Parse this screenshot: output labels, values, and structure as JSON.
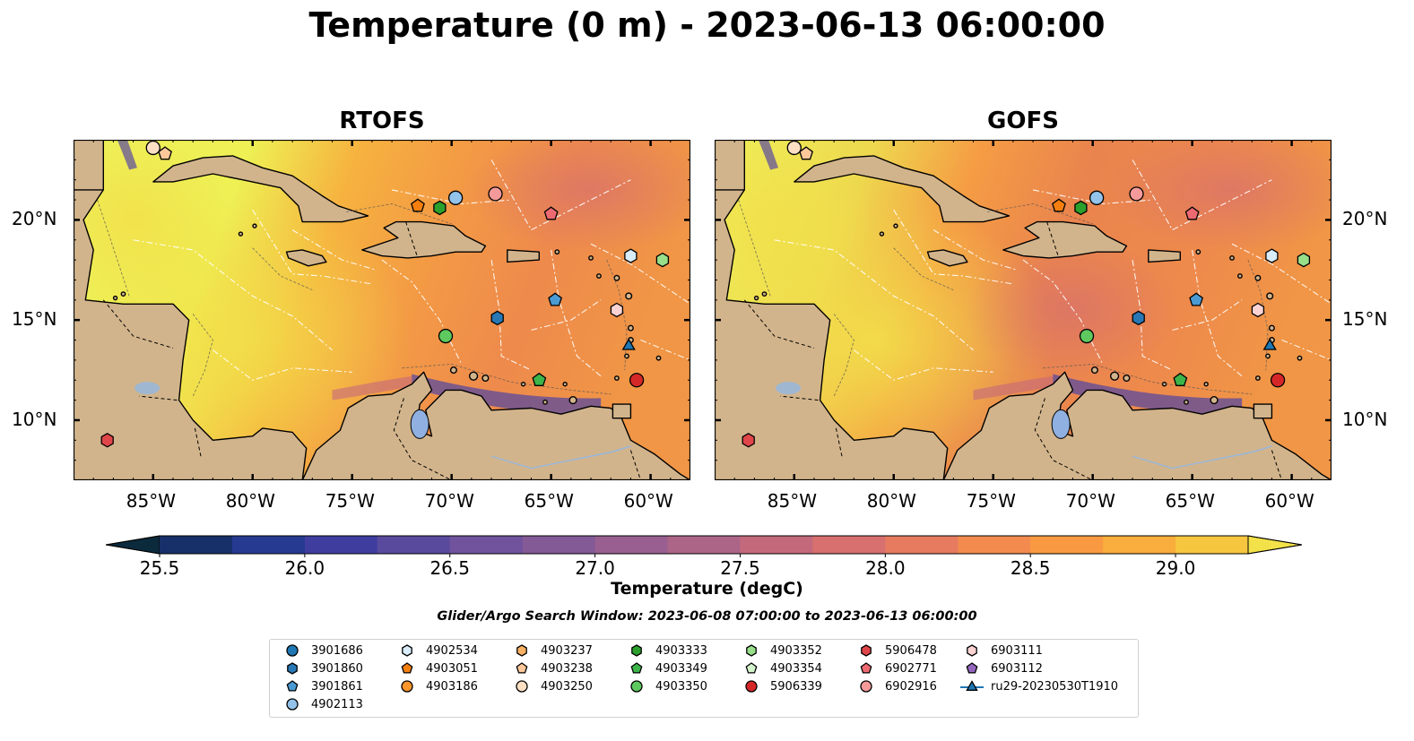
{
  "title": "Temperature (0 m) - 2023-06-13 06:00:00",
  "panels": [
    {
      "title": "RTOFS"
    },
    {
      "title": "GOFS"
    }
  ],
  "axes": {
    "lon_ticks": [
      "85°W",
      "80°W",
      "75°W",
      "70°W",
      "65°W",
      "60°W"
    ],
    "lat_ticks": [
      "20°N",
      "15°N",
      "10°N"
    ],
    "lon_range": [
      -89,
      -58
    ],
    "lat_range": [
      7,
      24
    ]
  },
  "colorbar": {
    "label": "Temperature (degC)",
    "ticks": [
      "25.5",
      "26.0",
      "26.5",
      "27.0",
      "27.5",
      "28.0",
      "28.5",
      "29.0"
    ],
    "min": 25.5,
    "max": 29.25,
    "colors": [
      "#0b2a3c",
      "#17306a",
      "#263a92",
      "#3f3e9f",
      "#5a4a9e",
      "#70539c",
      "#845a96",
      "#985f90",
      "#ad6587",
      "#c4697c",
      "#d7706f",
      "#e67b60",
      "#f38b4f",
      "#f99a42",
      "#f9ad3c",
      "#f6c63f",
      "#f2e148"
    ]
  },
  "search_window": "Glider/Argo Search Window: 2023-06-08 07:00:00 to 2023-06-13 06:00:00",
  "legend": [
    {
      "label": "3901686",
      "marker": "circle",
      "color": "#1f77b4"
    },
    {
      "label": "3901860",
      "marker": "hexagon",
      "color": "#2878b5"
    },
    {
      "label": "3901861",
      "marker": "pentagon",
      "color": "#4a9bd3"
    },
    {
      "label": "4902113",
      "marker": "circle",
      "color": "#93c3ea"
    },
    {
      "label": "4902534",
      "marker": "hexagon",
      "color": "#d9ecfa"
    },
    {
      "label": "4903051",
      "marker": "pentagon",
      "color": "#f57f0e"
    },
    {
      "label": "4903186",
      "marker": "circle",
      "color": "#fa962a"
    },
    {
      "label": "4903237",
      "marker": "hexagon",
      "color": "#fbb163"
    },
    {
      "label": "4903238",
      "marker": "pentagon",
      "color": "#fcc89a"
    },
    {
      "label": "4903250",
      "marker": "circle",
      "color": "#fde0c4"
    },
    {
      "label": "4903333",
      "marker": "hexagon",
      "color": "#2ca02c"
    },
    {
      "label": "4903349",
      "marker": "pentagon",
      "color": "#3db54a"
    },
    {
      "label": "4903350",
      "marker": "circle",
      "color": "#5ec95e"
    },
    {
      "label": "4903352",
      "marker": "hexagon",
      "color": "#98df8a"
    },
    {
      "label": "4903354",
      "marker": "pentagon",
      "color": "#d4f5cc"
    },
    {
      "label": "5906339",
      "marker": "circle",
      "color": "#d62728"
    },
    {
      "label": "5906478",
      "marker": "hexagon",
      "color": "#e0454a"
    },
    {
      "label": "6902771",
      "marker": "pentagon",
      "color": "#ee6a72"
    },
    {
      "label": "6902916",
      "marker": "circle",
      "color": "#f59a9a"
    },
    {
      "label": "6903111",
      "marker": "hexagon",
      "color": "#fcd3d3"
    },
    {
      "label": "6903112",
      "marker": "pentagon",
      "color": "#9467bd"
    },
    {
      "label": "ru29-20230530T1910",
      "marker": "triangle-line",
      "color": "#1f77b4"
    }
  ],
  "floats": [
    {
      "id": "5906478",
      "lon": -87.3,
      "lat": 9.0
    },
    {
      "id": "4903250",
      "lon": -85.0,
      "lat": 23.6
    },
    {
      "id": "4903238",
      "lon": -84.4,
      "lat": 23.3
    },
    {
      "id": "4903051",
      "lon": -71.7,
      "lat": 20.7
    },
    {
      "id": "4903333",
      "lon": -70.6,
      "lat": 20.6
    },
    {
      "id": "4902113",
      "lon": -69.8,
      "lat": 21.1
    },
    {
      "id": "6902916",
      "lon": -67.8,
      "lat": 21.3
    },
    {
      "id": "6902771",
      "lon": -65.0,
      "lat": 20.3
    },
    {
      "id": "4902534",
      "lon": -61.0,
      "lat": 18.2
    },
    {
      "id": "4903352",
      "lon": -59.4,
      "lat": 18.0
    },
    {
      "id": "3901861",
      "lon": -64.8,
      "lat": 16.0
    },
    {
      "id": "3901860",
      "lon": -67.7,
      "lat": 15.1
    },
    {
      "id": "6903111",
      "lon": -61.7,
      "lat": 15.5
    },
    {
      "id": "4903350",
      "lon": -70.3,
      "lat": 14.2
    },
    {
      "id": "ru29-20230530T1910",
      "lon": -61.1,
      "lat": 13.7
    },
    {
      "id": "4903349",
      "lon": -65.6,
      "lat": 12.0
    },
    {
      "id": "5906339",
      "lon": -60.7,
      "lat": 12.0
    }
  ]
}
